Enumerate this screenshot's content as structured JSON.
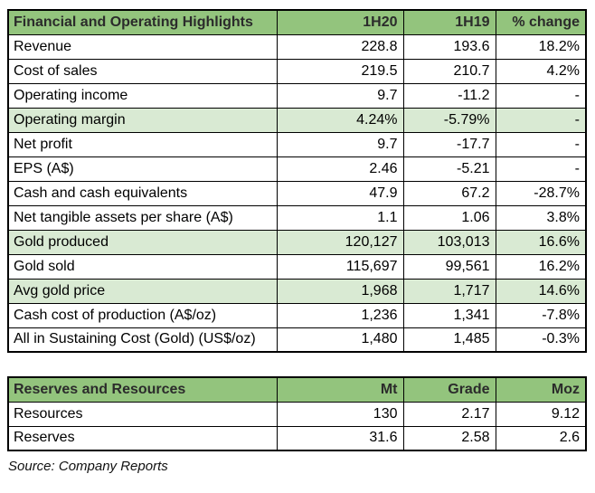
{
  "colors": {
    "header_green": "#93c47d",
    "highlight_green": "#d9ead3",
    "border": "#000000"
  },
  "highlights_table": {
    "headers": [
      "Financial and Operating Highlights",
      "1H20",
      "1H19",
      "% change"
    ],
    "rows": [
      {
        "label": "Revenue",
        "h1": "228.8",
        "h2": "193.6",
        "chg": "18.2%"
      },
      {
        "label": "Cost of sales",
        "h1": "219.5",
        "h2": "210.7",
        "chg": "4.2%"
      },
      {
        "label": "Operating income",
        "h1": "9.7",
        "h2": "-11.2",
        "chg": "-"
      },
      {
        "label": "Operating margin",
        "h1": "4.24%",
        "h2": "-5.79%",
        "chg": "-"
      },
      {
        "label": "Net profit",
        "h1": "9.7",
        "h2": "-17.7",
        "chg": "-"
      },
      {
        "label": "EPS (A$)",
        "h1": "2.46",
        "h2": "-5.21",
        "chg": "-"
      },
      {
        "label": "Cash and cash equivalents",
        "h1": "47.9",
        "h2": "67.2",
        "chg": "-28.7%"
      },
      {
        "label": "Net tangible assets per share (A$)",
        "h1": "1.1",
        "h2": "1.06",
        "chg": "3.8%"
      },
      {
        "label": "Gold produced",
        "h1": "120,127",
        "h2": "103,013",
        "chg": "16.6%"
      },
      {
        "label": "Gold sold",
        "h1": "115,697",
        "h2": "99,561",
        "chg": "16.2%"
      },
      {
        "label": "Avg gold price",
        "h1": "1,968",
        "h2": "1,717",
        "chg": "14.6%"
      },
      {
        "label": "Cash cost of production (A$/oz)",
        "h1": "1,236",
        "h2": "1,341",
        "chg": "-7.8%"
      },
      {
        "label": "All in Sustaining Cost (Gold) (US$/oz)",
        "h1": "1,480",
        "h2": "1,485",
        "chg": "-0.3%"
      }
    ]
  },
  "reserves_table": {
    "headers": [
      "Reserves and Resources",
      "Mt",
      "Grade",
      "Moz"
    ],
    "rows": [
      {
        "label": "Resources",
        "mt": "130",
        "grade": "2.17",
        "moz": "9.12"
      },
      {
        "label": "Reserves",
        "mt": "31.6",
        "grade": "2.58",
        "moz": "2.6"
      }
    ]
  },
  "source_note": "Source: Company Reports",
  "chart_data": [
    {
      "type": "table",
      "title": "Financial and Operating Highlights",
      "columns": [
        "Financial and Operating Highlights",
        "1H20",
        "1H19",
        "% change"
      ],
      "rows": [
        [
          "Revenue",
          228.8,
          193.6,
          "18.2%"
        ],
        [
          "Cost of sales",
          219.5,
          210.7,
          "4.2%"
        ],
        [
          "Operating income",
          9.7,
          -11.2,
          "-"
        ],
        [
          "Operating margin",
          "4.24%",
          "-5.79%",
          "-"
        ],
        [
          "Net profit",
          9.7,
          -17.7,
          "-"
        ],
        [
          "EPS (A$)",
          2.46,
          -5.21,
          "-"
        ],
        [
          "Cash and cash equivalents",
          47.9,
          67.2,
          "-28.7%"
        ],
        [
          "Net tangible assets per share (A$)",
          1.1,
          1.06,
          "3.8%"
        ],
        [
          "Gold produced",
          120127,
          103013,
          "16.6%"
        ],
        [
          "Gold sold",
          115697,
          99561,
          "16.2%"
        ],
        [
          "Avg gold price",
          1968,
          1717,
          "14.6%"
        ],
        [
          "Cash cost of production (A$/oz)",
          1236,
          1341,
          "-7.8%"
        ],
        [
          "All in Sustaining Cost (Gold) (US$/oz)",
          1480,
          1485,
          "-0.3%"
        ]
      ],
      "highlighted_rows": [
        "Operating margin",
        "Gold produced",
        "Avg gold price"
      ]
    },
    {
      "type": "table",
      "title": "Reserves and Resources",
      "columns": [
        "Reserves and Resources",
        "Mt",
        "Grade",
        "Moz"
      ],
      "rows": [
        [
          "Resources",
          130,
          2.17,
          9.12
        ],
        [
          "Reserves",
          31.6,
          2.58,
          2.6
        ]
      ]
    }
  ]
}
